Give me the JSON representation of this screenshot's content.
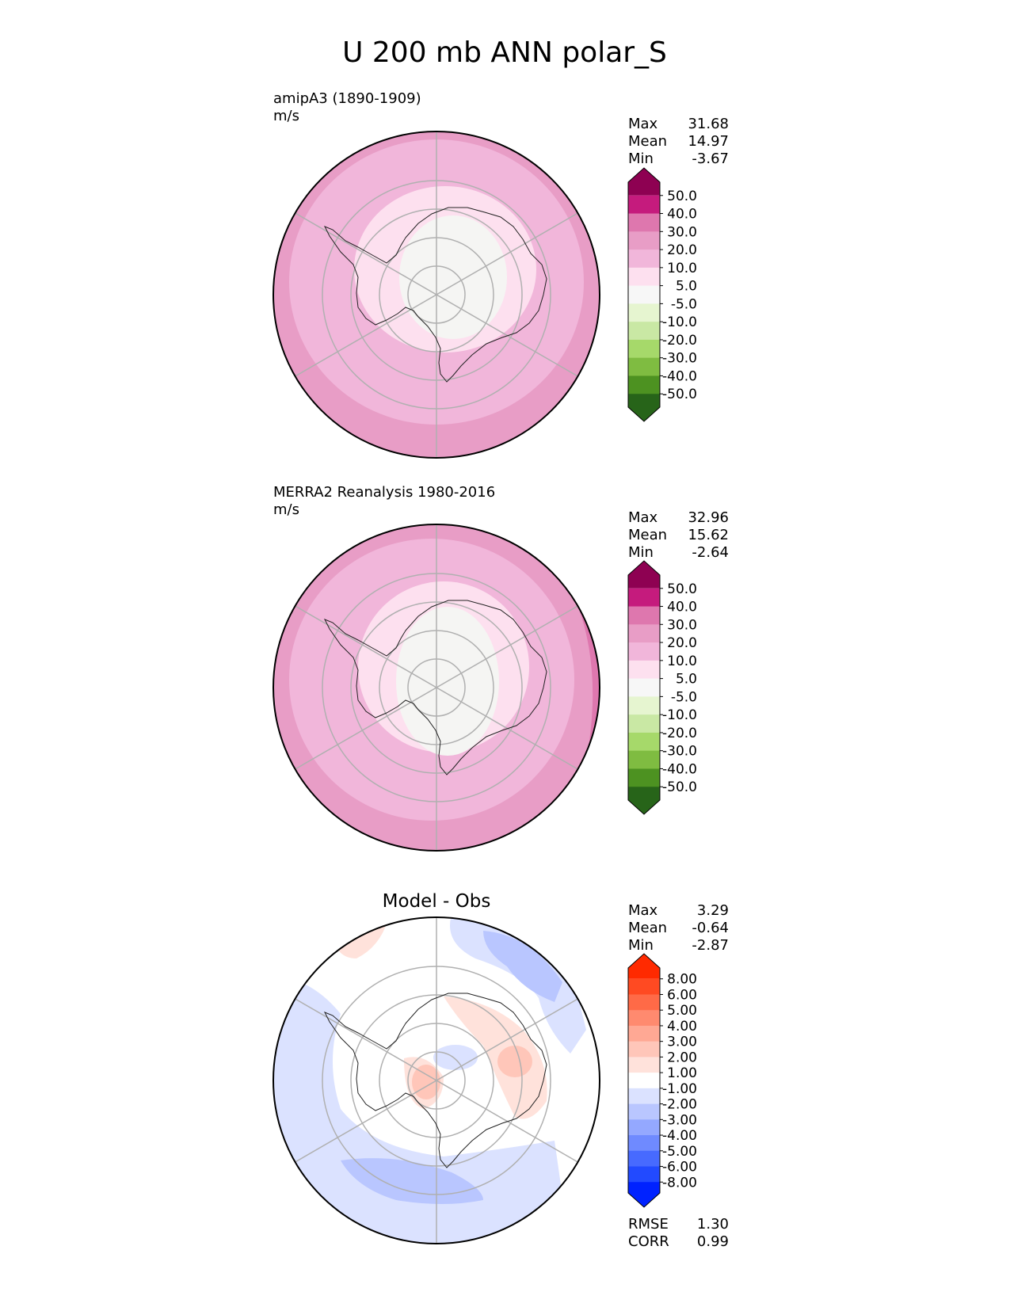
{
  "figure_title": "U 200 mb ANN polar_S",
  "colors": {
    "main_scale": [
      "#8e0152",
      "#c51b7d",
      "#de77ae",
      "#e89dc6",
      "#f1b6da",
      "#fde0ef",
      "#f7f7f7",
      "#e6f5d0",
      "#c9e8a4",
      "#a6d96a",
      "#7fbc41",
      "#4d9221",
      "#276419"
    ],
    "diff_scale": [
      "#ff2a00",
      "#ff4a22",
      "#ff6a47",
      "#ff8a6f",
      "#ffa894",
      "#ffc6b9",
      "#ffe2db",
      "#ffffff",
      "#dbe2ff",
      "#b9c6ff",
      "#94a8ff",
      "#6f8aff",
      "#476aff",
      "#224aff",
      "#0022ff"
    ],
    "map_pink_outer": "#e89dc6",
    "map_pink_mid": "#f1b6da",
    "map_pink_inner": "#fde0ef",
    "map_center": "#f5f5f3",
    "diff_blue_light": "#dbe2ff",
    "diff_blue_mid": "#b9c6ff",
    "diff_red_light": "#ffe2db",
    "diff_red_mid": "#ffc6b9",
    "grid": "#b0b0b0"
  },
  "chart_data": [
    {
      "type": "heatmap",
      "projection": "south-polar stereographic",
      "title": "amipA3 (1890-1909)",
      "units": "m/s",
      "stats": [
        {
          "label": "Max",
          "value": "31.68"
        },
        {
          "label": "Mean",
          "value": "14.97"
        },
        {
          "label": "Min",
          "value": "-3.67"
        }
      ],
      "colorbar": {
        "extend": "both",
        "levels": [
          -50,
          -40,
          -30,
          -20,
          -10,
          -5,
          5,
          10,
          20,
          30,
          40,
          50
        ],
        "tick_labels": [
          "50.0",
          "40.0",
          "30.0",
          "20.0",
          "10.0",
          "5.0",
          "-5.0",
          "-10.0",
          "-20.0",
          "-30.0",
          "-40.0",
          "-50.0"
        ]
      }
    },
    {
      "type": "heatmap",
      "projection": "south-polar stereographic",
      "title": "MERRA2 Reanalysis 1980-2016",
      "units": "m/s",
      "stats": [
        {
          "label": "Max",
          "value": "32.96"
        },
        {
          "label": "Mean",
          "value": "15.62"
        },
        {
          "label": "Min",
          "value": "-2.64"
        }
      ],
      "colorbar": {
        "extend": "both",
        "levels": [
          -50,
          -40,
          -30,
          -20,
          -10,
          -5,
          5,
          10,
          20,
          30,
          40,
          50
        ],
        "tick_labels": [
          "50.0",
          "40.0",
          "30.0",
          "20.0",
          "10.0",
          "5.0",
          "-5.0",
          "-10.0",
          "-20.0",
          "-30.0",
          "-40.0",
          "-50.0"
        ]
      }
    },
    {
      "type": "heatmap",
      "projection": "south-polar stereographic",
      "title": "Model - Obs",
      "units": "",
      "stats": [
        {
          "label": "Max",
          "value": "3.29"
        },
        {
          "label": "Mean",
          "value": "-0.64"
        },
        {
          "label": "Min",
          "value": "-2.87"
        }
      ],
      "colorbar": {
        "extend": "both",
        "levels": [
          -8,
          -6,
          -5,
          -4,
          -3,
          -2,
          -1,
          1,
          2,
          3,
          4,
          5,
          6,
          8
        ],
        "tick_labels": [
          "8.00",
          "6.00",
          "5.00",
          "4.00",
          "3.00",
          "2.00",
          "1.00",
          "-1.00",
          "-2.00",
          "-3.00",
          "-4.00",
          "-5.00",
          "-6.00",
          "-8.00"
        ]
      },
      "metrics": [
        {
          "label": "RMSE",
          "value": "1.30"
        },
        {
          "label": "CORR",
          "value": "0.99"
        }
      ]
    }
  ]
}
